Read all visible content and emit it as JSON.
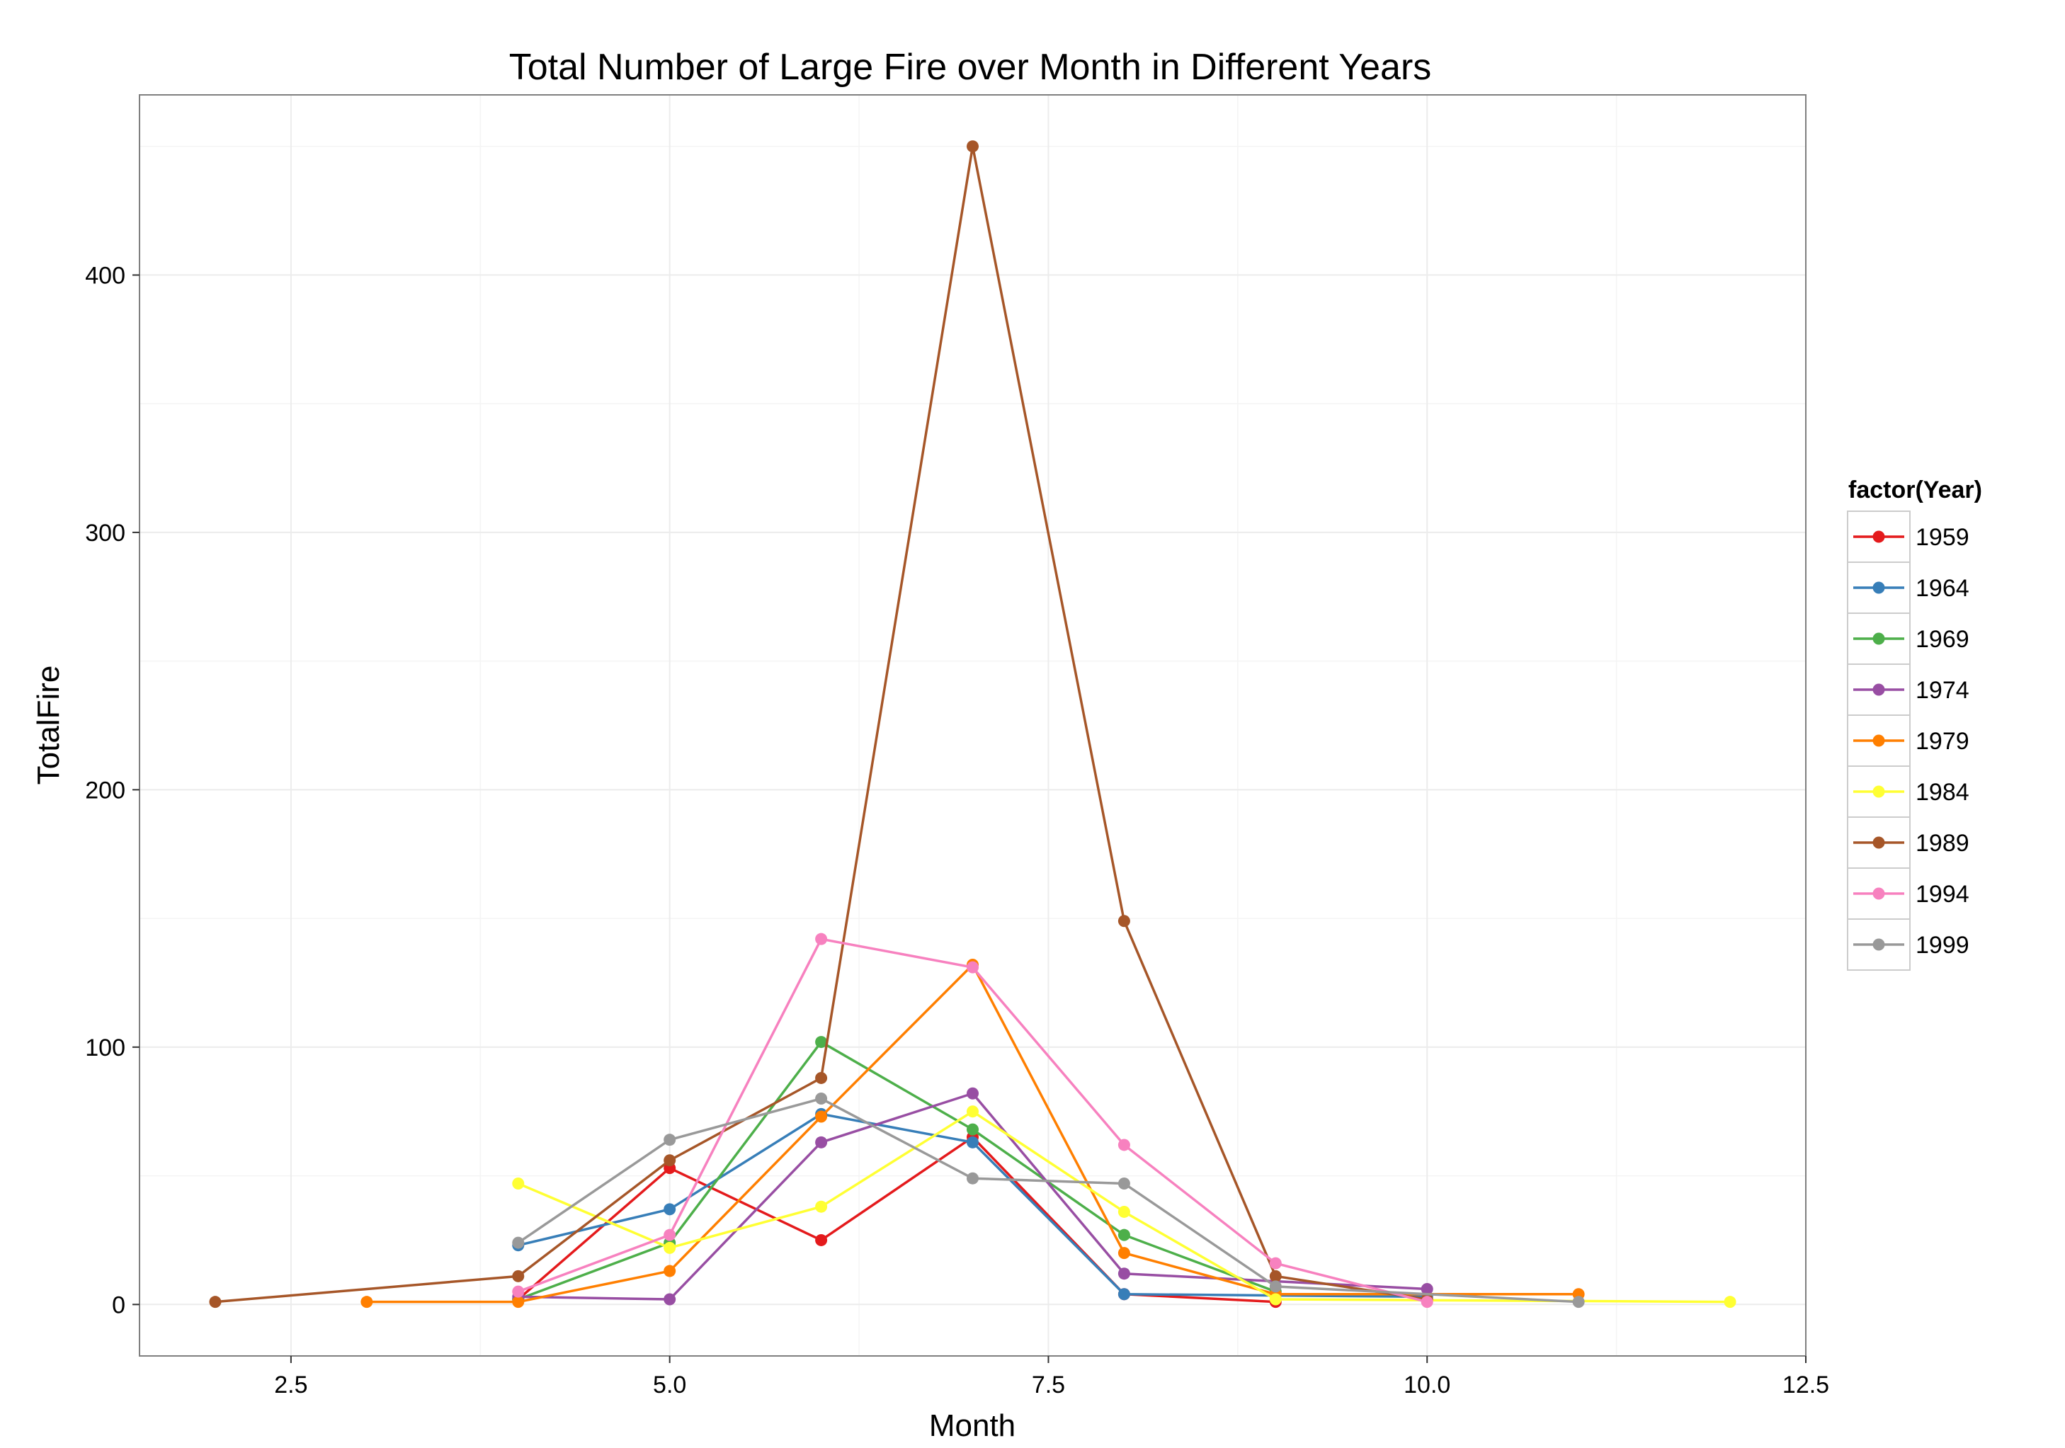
{
  "chart_data": {
    "type": "line",
    "title": "Total Number of Large Fire over Month in Different Years",
    "xlabel": "Month",
    "ylabel": "TotalFire",
    "xlim": [
      1.5,
      12.5
    ],
    "ylim": [
      -20,
      470
    ],
    "x_ticks": [
      2.5,
      5.0,
      7.5,
      10.0,
      12.5
    ],
    "x_tick_labels": [
      "2.5",
      "5.0",
      "7.5",
      "10.0",
      "12.5"
    ],
    "y_ticks": [
      0,
      100,
      200,
      300,
      400
    ],
    "y_tick_labels": [
      "0",
      "100",
      "200",
      "300",
      "400"
    ],
    "grid": true,
    "legend": {
      "title": "factor(Year)",
      "position": "right"
    },
    "series": [
      {
        "name": "1959",
        "color": "#E41A1C",
        "x": [
          4,
          5,
          6,
          7,
          8,
          9
        ],
        "y": [
          2,
          53,
          25,
          65,
          4,
          1
        ]
      },
      {
        "name": "1964",
        "color": "#377EB8",
        "x": [
          4,
          5,
          6,
          7,
          8,
          10
        ],
        "y": [
          23,
          37,
          74,
          63,
          4,
          3
        ]
      },
      {
        "name": "1969",
        "color": "#4DAF4A",
        "x": [
          4,
          5,
          6,
          7,
          8,
          9
        ],
        "y": [
          2,
          24,
          102,
          68,
          27,
          5
        ]
      },
      {
        "name": "1974",
        "color": "#984EA3",
        "x": [
          4,
          5,
          6,
          7,
          8,
          10
        ],
        "y": [
          3,
          2,
          63,
          82,
          12,
          6
        ]
      },
      {
        "name": "1979",
        "color": "#FF7F00",
        "x": [
          3,
          4,
          5,
          6,
          7,
          8,
          9,
          11
        ],
        "y": [
          1,
          1,
          13,
          73,
          132,
          20,
          4,
          4
        ]
      },
      {
        "name": "1984",
        "color": "#FFFF33",
        "x": [
          4,
          5,
          6,
          7,
          8,
          9,
          12
        ],
        "y": [
          47,
          22,
          38,
          75,
          36,
          2,
          1
        ]
      },
      {
        "name": "1989",
        "color": "#A65628",
        "x": [
          2,
          4,
          5,
          6,
          7,
          8,
          9,
          10
        ],
        "y": [
          1,
          11,
          56,
          88,
          450,
          149,
          11,
          2
        ]
      },
      {
        "name": "1994",
        "color": "#F781BF",
        "x": [
          4,
          5,
          6,
          7,
          8,
          9,
          10
        ],
        "y": [
          5,
          27,
          142,
          131,
          62,
          16,
          1
        ]
      },
      {
        "name": "1999",
        "color": "#999999",
        "x": [
          4,
          5,
          6,
          7,
          8,
          9,
          11
        ],
        "y": [
          24,
          64,
          80,
          49,
          47,
          7,
          1
        ]
      }
    ]
  }
}
